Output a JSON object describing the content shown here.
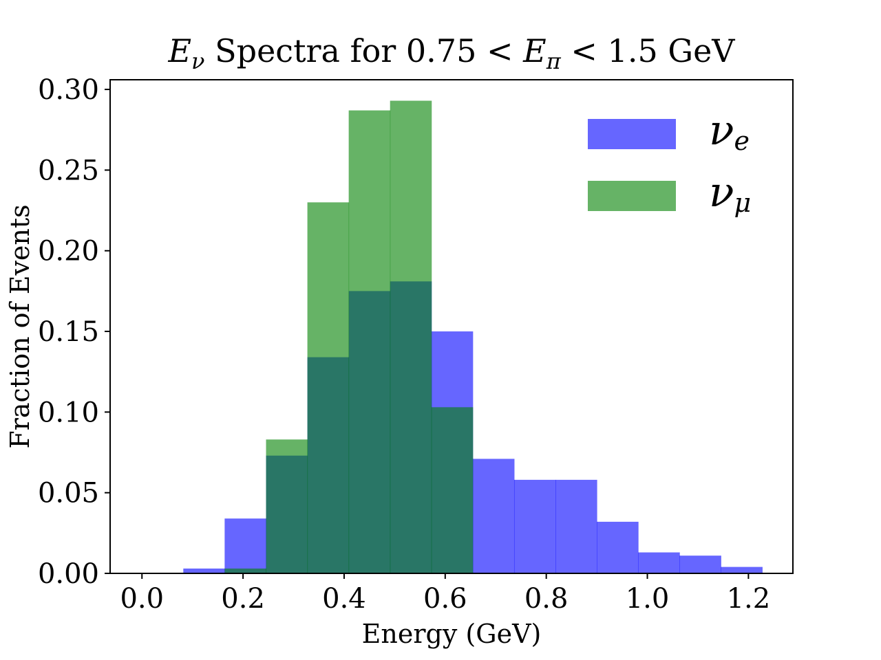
{
  "chart_data": {
    "type": "bar",
    "histogram": true,
    "title": {
      "pre": "E",
      "pre_sub": "ν",
      "mid": " Spectra for 0.75 < ",
      "mid2": "E",
      "mid2_sub": "π",
      "post": " < 1.5 GeV"
    },
    "xlabel": "Energy (GeV)",
    "ylabel": "Fraction of Events",
    "xlim": [
      -0.063,
      1.288
    ],
    "ylim": [
      0,
      0.306
    ],
    "x_ticks": [
      0.0,
      0.2,
      0.4,
      0.6,
      0.8,
      1.0,
      1.2
    ],
    "x_tick_labels": [
      "0.0",
      "0.2",
      "0.4",
      "0.6",
      "0.8",
      "1.0",
      "1.2"
    ],
    "y_ticks": [
      0.0,
      0.05,
      0.1,
      0.15,
      0.2,
      0.25,
      0.3
    ],
    "y_tick_labels": [
      "0.00",
      "0.05",
      "0.10",
      "0.15",
      "0.20",
      "0.25",
      "0.30"
    ],
    "bin_edges": [
      0.0,
      0.0818,
      0.1636,
      0.2455,
      0.3273,
      0.4091,
      0.4909,
      0.5727,
      0.6545,
      0.7364,
      0.8182,
      0.9,
      0.9818,
      1.0636,
      1.1455,
      1.2273
    ],
    "series": [
      {
        "name": "ν_e",
        "label_main": "ν",
        "label_sub": "e",
        "color": "#0000ff",
        "alpha": 0.6,
        "values": [
          0.0,
          0.003,
          0.034,
          0.073,
          0.134,
          0.175,
          0.181,
          0.15,
          0.071,
          0.058,
          0.058,
          0.032,
          0.013,
          0.011,
          0.004
        ]
      },
      {
        "name": "ν_μ",
        "label_main": "ν",
        "label_sub": "μ",
        "color": "#008000",
        "alpha": 0.6,
        "values": [
          0.0,
          0.0,
          0.003,
          0.083,
          0.23,
          0.287,
          0.293,
          0.103,
          0.0,
          0.0,
          0.0,
          0.0,
          0.0,
          0.0,
          0.0
        ]
      }
    ],
    "legend_position": "top-right"
  }
}
